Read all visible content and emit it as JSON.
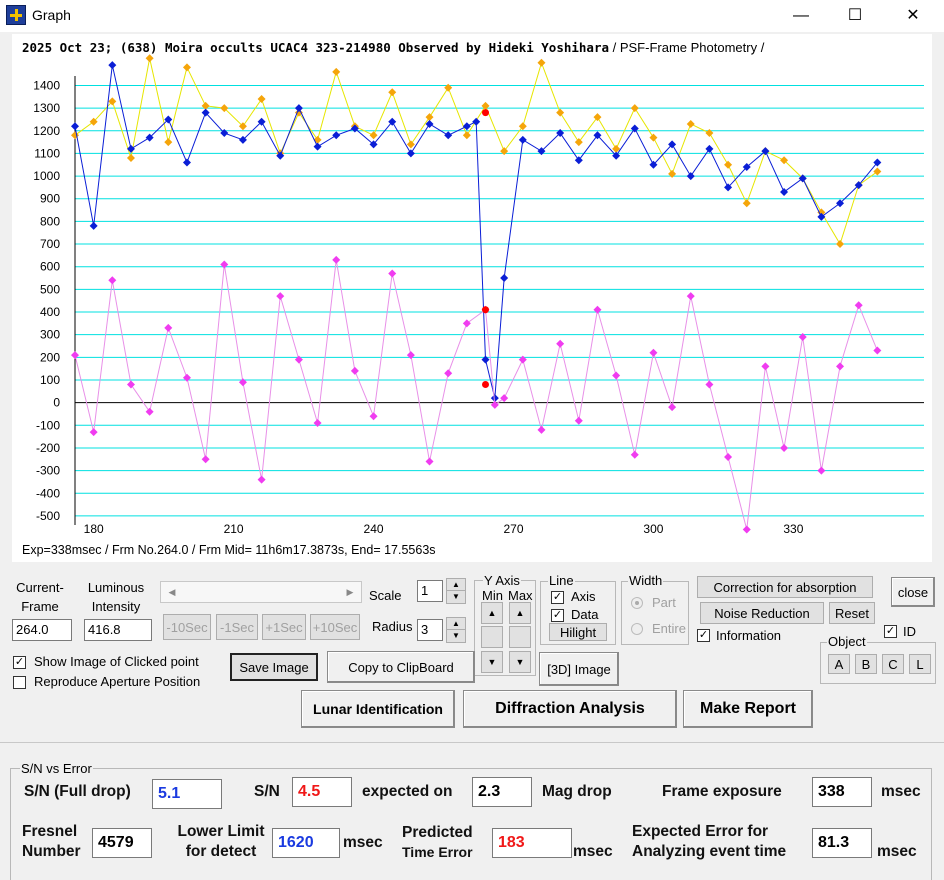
{
  "window": {
    "title": "Graph",
    "min": "—",
    "max": "☐",
    "close": "✕"
  },
  "graph": {
    "title_main": "2025 Oct 23; (638) Moira occults UCAC4 323-214980 Observed by Hideki Yoshihara",
    "title_suffix": " / PSF-Frame Photometry /",
    "info": "Exp=338msec / Frm No.264.0 / Frm Mid= 11h6m17.3873s,  End= 17.5563s"
  },
  "chart_data": {
    "type": "line",
    "xlim": [
      176,
      358
    ],
    "ylim": [
      -540,
      1530
    ],
    "x_ticks": [
      180,
      210,
      240,
      270,
      300,
      330
    ],
    "y_ticks": [
      -500,
      -400,
      -300,
      -200,
      -100,
      0,
      100,
      200,
      300,
      400,
      500,
      600,
      700,
      800,
      900,
      1000,
      1100,
      1200,
      1300,
      1400
    ],
    "grid": true,
    "colors": {
      "target": "#0a1ed6",
      "comparison": "#f5a50a",
      "comparison_line": "#e6e600",
      "difference": "#f03cf0",
      "difference_line": "#e890e8",
      "highlight": "#ff0000",
      "grid": "#00e0e0",
      "zero": "#000000"
    },
    "series": [
      {
        "key": "comparison",
        "x": [
          176,
          180,
          184,
          188,
          192,
          196,
          200,
          204,
          208,
          212,
          216,
          220,
          224,
          228,
          232,
          236,
          240,
          244,
          248,
          252,
          256,
          260,
          264,
          268,
          272,
          276,
          280,
          284,
          288,
          292,
          296,
          300,
          304,
          308,
          312,
          316,
          320,
          324,
          328,
          332,
          336,
          340,
          344,
          348
        ],
        "values": [
          1180,
          1240,
          1330,
          1080,
          1520,
          1150,
          1480,
          1310,
          1300,
          1220,
          1340,
          1100,
          1280,
          1160,
          1460,
          1220,
          1180,
          1370,
          1140,
          1260,
          1390,
          1180,
          1310,
          1110,
          1220,
          1500,
          1280,
          1150,
          1260,
          1120,
          1300,
          1170,
          1010,
          1230,
          1190,
          1050,
          880,
          1110,
          1070,
          990,
          840,
          700,
          960,
          1020
        ]
      },
      {
        "key": "target",
        "x": [
          176,
          180,
          184,
          188,
          192,
          196,
          200,
          204,
          208,
          212,
          216,
          220,
          224,
          228,
          232,
          236,
          240,
          244,
          248,
          252,
          256,
          260,
          262,
          264,
          266,
          268,
          272,
          276,
          280,
          284,
          288,
          292,
          296,
          300,
          304,
          308,
          312,
          316,
          320,
          324,
          328,
          332,
          336,
          340,
          344,
          348
        ],
        "values": [
          1220,
          780,
          1490,
          1120,
          1170,
          1250,
          1060,
          1280,
          1190,
          1160,
          1240,
          1090,
          1300,
          1130,
          1180,
          1210,
          1140,
          1240,
          1100,
          1230,
          1180,
          1220,
          1240,
          190,
          20,
          550,
          1160,
          1110,
          1190,
          1070,
          1180,
          1090,
          1210,
          1050,
          1140,
          1000,
          1120,
          950,
          1040,
          1110,
          930,
          990,
          820,
          880,
          960,
          1060
        ]
      },
      {
        "key": "difference",
        "x": [
          176,
          180,
          184,
          188,
          192,
          196,
          200,
          204,
          208,
          212,
          216,
          220,
          224,
          228,
          232,
          236,
          240,
          244,
          248,
          252,
          256,
          260,
          264,
          266,
          268,
          272,
          276,
          280,
          284,
          288,
          292,
          296,
          300,
          304,
          308,
          312,
          316,
          320,
          324,
          328,
          332,
          336,
          340,
          344,
          348
        ],
        "values": [
          210,
          -130,
          540,
          80,
          -40,
          330,
          110,
          -250,
          610,
          90,
          -340,
          470,
          190,
          -90,
          630,
          140,
          -60,
          570,
          210,
          -260,
          130,
          350,
          410,
          -10,
          20,
          190,
          -120,
          260,
          -80,
          410,
          120,
          -230,
          220,
          -20,
          470,
          80,
          -240,
          -560,
          160,
          -200,
          290,
          -300,
          160,
          430,
          230
        ]
      },
      {
        "key": "highlight",
        "x": [
          264,
          264,
          264
        ],
        "values": [
          1280,
          410,
          80
        ]
      }
    ]
  },
  "controls": {
    "current_frame_label": "Current-\nFrame",
    "current_frame_value": "264.0",
    "luminous_label": "Luminous\nIntensity",
    "luminous_value": "416.8",
    "scroll_left": "◀",
    "scroll_right": "▶",
    "btn_m10": "-10Sec",
    "btn_m1": "-1Sec",
    "btn_p1": "+1Sec",
    "btn_p10": "+10Sec",
    "scale_label": "Scale",
    "scale_value": "1",
    "radius_label": "Radius",
    "radius_value": "3",
    "spin_up": "▲",
    "spin_down": "▼",
    "yaxis_label": "Y Axis",
    "ymin_label": "Min",
    "ymax_label": "Max",
    "line_label": "Line",
    "axis_label": "Axis",
    "data_label": "Data",
    "hilight": "Hilight",
    "width_label": "Width",
    "part_label": "Part",
    "entire_label": "Entire",
    "correction": "Correction for absorption",
    "close": "close",
    "noise": "Noise Reduction",
    "reset": "Reset",
    "information": "Information",
    "id": "ID",
    "object_label": "Object",
    "obj_a": "A",
    "obj_b": "B",
    "obj_c": "C",
    "obj_l": "L",
    "image3d": "[3D] Image",
    "show_image": "Show Image of Clicked point",
    "reproduce": "Reproduce Aperture Position",
    "save_image": "Save Image",
    "copy_clip": "Copy to ClipBoard",
    "check": "✓",
    "lunar": "Lunar Identification",
    "diffraction": "Diffraction Analysis",
    "report": "Make Report"
  },
  "sn": {
    "group_label": "S/N vs Error",
    "full_drop_label": "S/N (Full drop)",
    "full_drop_value": "5.1",
    "sn_label": "S/N",
    "sn_value": "4.5",
    "expected_label": "expected on",
    "expected_value": "2.3",
    "mag_drop": "Mag drop",
    "frame_exp_label": "Frame exposure",
    "frame_exp_value": "338",
    "msec": "msec",
    "fresnel_label_1": "Fresnel",
    "fresnel_label_2": "Number",
    "fresnel_value": "4579",
    "lower_label_1": "Lower Limit",
    "lower_label_2": "for detect",
    "lower_value": "1620",
    "pred_label_1": "Predicted",
    "pred_label_2": "Time Error",
    "pred_value": "183",
    "exp_err_label_1": "Expected Error for",
    "exp_err_label_2": "Analyzing event time",
    "exp_err_value": "81.3"
  }
}
